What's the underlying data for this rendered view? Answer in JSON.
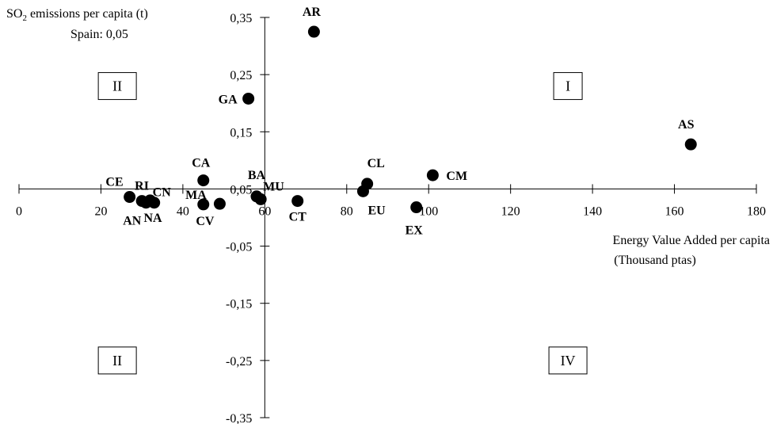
{
  "chart_data": {
    "type": "scatter",
    "title": "",
    "ylabel_prefix": "SO",
    "ylabel_sub": "2",
    "ylabel_suffix": " emissions per capita (t)",
    "ylabel_note": "Spain: 0,05",
    "xlabel_line1": "Energy Value Added per capita",
    "xlabel_line2": "(Thousand ptas)",
    "xlim": [
      0,
      180
    ],
    "ylim": [
      -0.35,
      0.35
    ],
    "x_axis_at_y": 0.05,
    "y_axis_at_x": 60,
    "x_ticks": [
      0,
      20,
      40,
      60,
      80,
      100,
      120,
      140,
      160,
      180
    ],
    "x_tick_labels": [
      "0",
      "20",
      "40",
      "60",
      "80",
      "100",
      "120",
      "140",
      "160",
      "180"
    ],
    "y_ticks": [
      0.35,
      0.25,
      0.15,
      0.05,
      -0.05,
      -0.15,
      -0.25,
      -0.35
    ],
    "y_tick_labels": [
      "0,35",
      "0,25",
      "0,15",
      "0,05",
      "-0,05",
      "-0,15",
      "-0,25",
      "-0,35"
    ],
    "quadrants": [
      {
        "label": "II",
        "x": 24,
        "y": 0.23
      },
      {
        "label": "I",
        "x": 134,
        "y": 0.23
      },
      {
        "label": "II",
        "x": 24,
        "y": -0.25
      },
      {
        "label": "IV",
        "x": 134,
        "y": -0.25
      }
    ],
    "points": [
      {
        "label": "AR",
        "x": 72,
        "y": 0.325
      },
      {
        "label": "GA",
        "x": 56,
        "y": 0.208
      },
      {
        "label": "AS",
        "x": 164,
        "y": 0.128
      },
      {
        "label": "CA",
        "x": 45,
        "y": 0.065
      },
      {
        "label": "CM",
        "x": 101,
        "y": 0.074
      },
      {
        "label": "CL",
        "x": 85,
        "y": 0.059
      },
      {
        "label": "BA",
        "x": 58,
        "y": 0.037
      },
      {
        "label": "EU",
        "x": 84,
        "y": 0.046
      },
      {
        "label": "MU",
        "x": 59,
        "y": 0.032
      },
      {
        "label": "CT",
        "x": 68,
        "y": 0.029
      },
      {
        "label": "EX",
        "x": 97,
        "y": 0.018
      },
      {
        "label": "CE",
        "x": 27,
        "y": 0.036
      },
      {
        "label": "RI",
        "x": 30,
        "y": 0.029
      },
      {
        "label": "CN",
        "x": 33,
        "y": 0.026
      },
      {
        "label": "AN",
        "x": 31,
        "y": 0.026
      },
      {
        "label": "NA",
        "x": 32,
        "y": 0.03
      },
      {
        "label": "MA",
        "x": 45,
        "y": 0.023
      },
      {
        "label": "CV",
        "x": 49,
        "y": 0.024
      }
    ]
  }
}
